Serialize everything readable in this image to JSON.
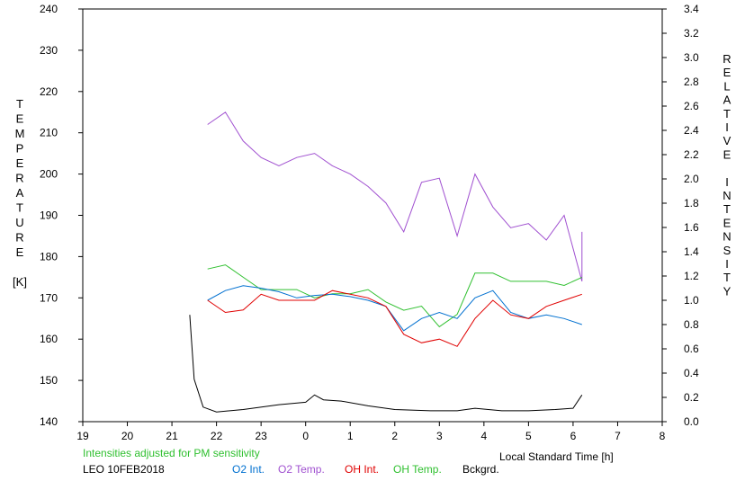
{
  "chart_data": {
    "type": "line",
    "xlabel": "Local Standard Time [h]",
    "ylabel_left": [
      "T",
      "E",
      "M",
      "P",
      "E",
      "R",
      "A",
      "T",
      "U",
      "R",
      "E",
      "",
      "[K]"
    ],
    "ylabel_right": [
      "R",
      "E",
      "L",
      "A",
      "T",
      "I",
      "V",
      "E",
      "",
      "I",
      "N",
      "T",
      "E",
      "N",
      "S",
      "I",
      "T",
      "Y"
    ],
    "x_range": [
      19,
      32
    ],
    "x_ticks": [
      19,
      20,
      21,
      22,
      23,
      24,
      25,
      26,
      27,
      28,
      29,
      30,
      31,
      32
    ],
    "x_tick_labels": [
      "19",
      "20",
      "21",
      "22",
      "23",
      "0",
      "1",
      "2",
      "3",
      "4",
      "5",
      "6",
      "7",
      "8"
    ],
    "ylim_left": [
      140,
      240
    ],
    "y_ticks_left": [
      "140",
      "150",
      "160",
      "170",
      "180",
      "190",
      "200",
      "210",
      "220",
      "230",
      "240"
    ],
    "ylim_right": [
      0.0,
      3.4
    ],
    "y_ticks_right": [
      "0.0",
      "0.2",
      "0.4",
      "0.6",
      "0.8",
      "1.0",
      "1.2",
      "1.4",
      "1.6",
      "1.8",
      "2.0",
      "2.2",
      "2.4",
      "2.6",
      "2.8",
      "3.0",
      "3.2",
      "3.4"
    ],
    "note": "Intensities adjusted for PM sensitivity",
    "station": "LEO 10FEB2018",
    "legend": [
      {
        "name": "O2 Int.",
        "color": "#0070d0"
      },
      {
        "name": "O2 Temp.",
        "color": "#a050d0"
      },
      {
        "name": "OH Int.",
        "color": "#e00000"
      },
      {
        "name": "OH Temp.",
        "color": "#30c030"
      },
      {
        "name": "Bckgrd.",
        "color": "#000000"
      }
    ],
    "series": [
      {
        "key": "o2temp",
        "axis": "left",
        "color": "#a050d0",
        "x": [
          21.8,
          22.2,
          22.6,
          23.0,
          23.4,
          23.8,
          24.2,
          24.6,
          25.0,
          25.4,
          25.8,
          26.2,
          26.6,
          27.0,
          27.4,
          27.8,
          28.2,
          28.6,
          29.0,
          29.4,
          29.8,
          30.2,
          30.2
        ],
        "y": [
          212,
          215,
          208,
          204,
          202,
          204,
          205,
          202,
          200,
          197,
          193,
          186,
          198,
          199,
          185,
          200,
          192,
          187,
          188,
          184,
          190,
          174,
          186
        ]
      },
      {
        "key": "ohtemp",
        "axis": "left",
        "color": "#30c030",
        "x": [
          21.8,
          22.2,
          22.6,
          23.0,
          23.4,
          23.8,
          24.2,
          24.6,
          25.0,
          25.4,
          25.8,
          26.2,
          26.6,
          27.0,
          27.4,
          27.8,
          28.2,
          28.6,
          29.0,
          29.4,
          29.8,
          30.2
        ],
        "y": [
          177,
          178,
          175,
          172,
          172,
          172,
          170,
          171,
          171,
          172,
          169,
          167,
          168,
          163,
          166,
          176,
          176,
          174,
          174,
          174,
          173,
          175
        ]
      },
      {
        "key": "o2int",
        "axis": "right",
        "color": "#0070d0",
        "x": [
          21.8,
          22.2,
          22.6,
          23.0,
          23.4,
          23.8,
          24.2,
          24.6,
          25.0,
          25.4,
          25.8,
          26.2,
          26.6,
          27.0,
          27.4,
          27.8,
          28.2,
          28.6,
          29.0,
          29.4,
          29.8,
          30.2
        ],
        "y": [
          1.0,
          1.08,
          1.12,
          1.1,
          1.07,
          1.02,
          1.04,
          1.05,
          1.03,
          1.0,
          0.95,
          0.75,
          0.85,
          0.9,
          0.85,
          1.02,
          1.08,
          0.9,
          0.85,
          0.88,
          0.85,
          0.8
        ]
      },
      {
        "key": "ohint",
        "axis": "right",
        "color": "#e00000",
        "x": [
          21.8,
          22.2,
          22.6,
          23.0,
          23.4,
          23.8,
          24.2,
          24.6,
          25.0,
          25.4,
          25.8,
          26.2,
          26.6,
          27.0,
          27.4,
          27.8,
          28.2,
          28.6,
          29.0,
          29.4,
          29.8,
          30.2
        ],
        "y": [
          1.0,
          0.9,
          0.92,
          1.05,
          1.0,
          1.0,
          1.0,
          1.08,
          1.05,
          1.02,
          0.95,
          0.72,
          0.65,
          0.68,
          0.62,
          0.85,
          1.0,
          0.88,
          0.85,
          0.95,
          1.0,
          1.05
        ]
      },
      {
        "key": "bckgrd",
        "axis": "right",
        "color": "#000000",
        "x": [
          21.4,
          21.5,
          21.7,
          22.0,
          22.6,
          23.4,
          24.0,
          24.2,
          24.4,
          24.8,
          25.4,
          26.0,
          26.8,
          27.4,
          27.8,
          28.4,
          29.0,
          29.6,
          30.0,
          30.2
        ],
        "y": [
          0.88,
          0.35,
          0.12,
          0.08,
          0.1,
          0.14,
          0.16,
          0.22,
          0.18,
          0.17,
          0.13,
          0.1,
          0.09,
          0.09,
          0.11,
          0.09,
          0.09,
          0.1,
          0.11,
          0.22
        ]
      }
    ]
  }
}
